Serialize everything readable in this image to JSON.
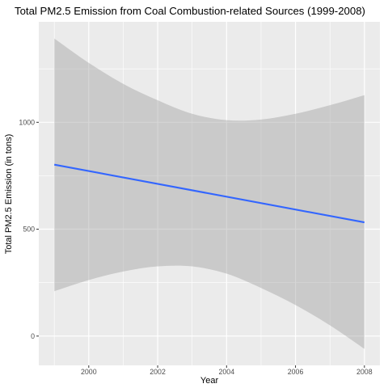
{
  "chart_data": {
    "type": "line",
    "title": "Total PM2.5 Emission from Coal Combustion-related Sources (1999-2008)",
    "xlabel": "Year",
    "ylabel": "Total PM2.5 Emission (in tons)",
    "xlim": [
      1998.55,
      2008.45
    ],
    "ylim": [
      -137,
      1470
    ],
    "x_ticks": [
      2000,
      2002,
      2004,
      2006,
      2008
    ],
    "y_ticks": [
      0,
      500,
      1000
    ],
    "grid": true,
    "series": [
      {
        "x": [
          1999,
          2008
        ],
        "y": [
          802,
          532
        ],
        "color": "#3366FF"
      }
    ],
    "confidence_band": {
      "color": "#999999",
      "x": [
        1999,
        2000,
        2001,
        2002,
        2003,
        2004,
        2005,
        2006,
        2007,
        2008
      ],
      "upper": [
        1392,
        1278,
        1180,
        1103,
        1040,
        1010,
        1013,
        1040,
        1080,
        1127
      ],
      "lower": [
        210,
        262,
        302,
        326,
        326,
        292,
        225,
        145,
        50,
        -60
      ]
    }
  }
}
